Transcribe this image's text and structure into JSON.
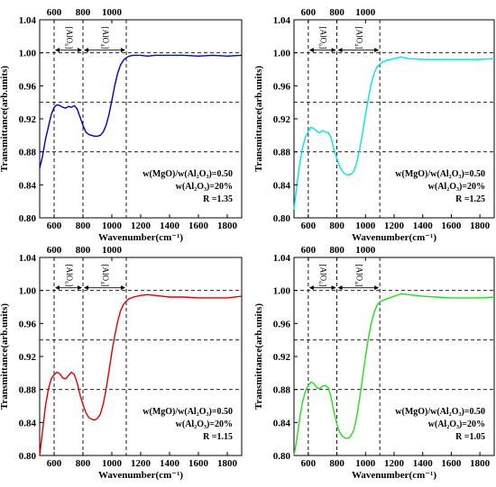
{
  "chart_data": [
    {
      "type": "line",
      "xlabel": "Wavenumber(cm⁻¹)",
      "ylabel": "Transmittance(arb.units)",
      "xlim": [
        500,
        1900
      ],
      "ylim": [
        0.8,
        1.04
      ],
      "bottom_ticks": [
        "600",
        "800",
        "1000",
        "1200",
        "1400",
        "1600",
        "1800"
      ],
      "top_ticks": [
        "600",
        "800",
        "1000"
      ],
      "y_ticks": [
        "0.80",
        "0.84",
        "0.88",
        "0.92",
        "0.96",
        "1.00",
        "1.04"
      ],
      "color": "#0000cc",
      "hlines": [
        1.0,
        0.94,
        0.88
      ],
      "vlines": [
        600,
        800,
        1100
      ],
      "regions": [
        {
          "label": "[AlO₆]",
          "from": 600,
          "to": 800
        },
        {
          "label": "[AlO₄]",
          "from": 800,
          "to": 1100
        }
      ],
      "annotations": [
        "w(MgO)/w(Al₂O₃)=0.50",
        "w(Al₂O₃)=20%",
        "R =1.35"
      ],
      "x": [
        500,
        520,
        540,
        560,
        580,
        600,
        620,
        640,
        660,
        680,
        700,
        720,
        740,
        760,
        780,
        800,
        820,
        840,
        860,
        880,
        900,
        920,
        940,
        960,
        980,
        1000,
        1020,
        1040,
        1060,
        1080,
        1100,
        1120,
        1150,
        1200,
        1250,
        1300,
        1400,
        1500,
        1600,
        1700,
        1800,
        1900
      ],
      "y": [
        0.86,
        0.875,
        0.895,
        0.91,
        0.925,
        0.934,
        0.937,
        0.936,
        0.934,
        0.933,
        0.935,
        0.934,
        0.936,
        0.932,
        0.922,
        0.912,
        0.904,
        0.901,
        0.9,
        0.899,
        0.899,
        0.9,
        0.904,
        0.912,
        0.925,
        0.942,
        0.96,
        0.975,
        0.985,
        0.991,
        0.994,
        0.996,
        0.997,
        0.997,
        0.996,
        0.997,
        0.997,
        0.997,
        0.996,
        0.997,
        0.996,
        0.997
      ]
    },
    {
      "type": "line",
      "xlabel": "Wavenumber(cm⁻¹)",
      "ylabel": "Transmittance(arb.units)",
      "xlim": [
        500,
        1900
      ],
      "ylim": [
        0.8,
        1.04
      ],
      "bottom_ticks": [
        "600",
        "800",
        "1000",
        "1200",
        "1400",
        "1600",
        "1800"
      ],
      "top_ticks": [
        "600",
        "800",
        "1000"
      ],
      "y_ticks": [
        "0.80",
        "0.84",
        "0.88",
        "0.92",
        "0.96",
        "1.00",
        "1.04"
      ],
      "color": "#00e5e5",
      "hlines": [
        1.0,
        0.94,
        0.88
      ],
      "vlines": [
        600,
        800,
        1100
      ],
      "regions": [
        {
          "label": "[AlO₆]",
          "from": 600,
          "to": 800
        },
        {
          "label": "[AlO₄]",
          "from": 800,
          "to": 1100
        }
      ],
      "annotations": [
        "w(MgO)/w(Al₂O₃)=0.50",
        "w(Al₂O₃)=20%",
        "R =1.25"
      ],
      "x": [
        500,
        520,
        540,
        560,
        580,
        600,
        620,
        640,
        660,
        680,
        700,
        720,
        740,
        760,
        780,
        800,
        820,
        840,
        860,
        880,
        900,
        920,
        940,
        960,
        980,
        1000,
        1020,
        1040,
        1060,
        1080,
        1100,
        1120,
        1150,
        1200,
        1250,
        1300,
        1400,
        1500,
        1600,
        1700,
        1800,
        1900
      ],
      "y": [
        0.81,
        0.84,
        0.865,
        0.885,
        0.898,
        0.905,
        0.91,
        0.908,
        0.905,
        0.903,
        0.906,
        0.904,
        0.903,
        0.897,
        0.882,
        0.872,
        0.862,
        0.856,
        0.853,
        0.852,
        0.853,
        0.857,
        0.868,
        0.884,
        0.903,
        0.925,
        0.945,
        0.962,
        0.975,
        0.983,
        0.986,
        0.989,
        0.991,
        0.993,
        0.995,
        0.993,
        0.992,
        0.992,
        0.992,
        0.992,
        0.992,
        0.993
      ]
    },
    {
      "type": "line",
      "xlabel": "Wavenumber(cm⁻¹)",
      "ylabel": "Transmittance(arb.units)",
      "xlim": [
        500,
        1900
      ],
      "ylim": [
        0.8,
        1.04
      ],
      "bottom_ticks": [
        "600",
        "800",
        "1000",
        "1200",
        "1400",
        "1600",
        "1800"
      ],
      "top_ticks": [
        "600",
        "800",
        "1000"
      ],
      "y_ticks": [
        "0.80",
        "0.84",
        "0.88",
        "0.92",
        "0.96",
        "1.00",
        "1.04"
      ],
      "color": "#e00000",
      "hlines": [
        1.0,
        0.94,
        0.88
      ],
      "vlines": [
        600,
        800,
        1100
      ],
      "regions": [
        {
          "label": "[AlO₆]",
          "from": 600,
          "to": 800
        },
        {
          "label": "[AlO₄]",
          "from": 800,
          "to": 1100
        }
      ],
      "annotations": [
        "w(MgO)/w(Al₂O₃)=0.50",
        "w(Al₂O₃)=20%",
        "R =1.15"
      ],
      "x": [
        500,
        520,
        540,
        560,
        580,
        600,
        620,
        640,
        660,
        680,
        700,
        720,
        740,
        760,
        780,
        800,
        820,
        840,
        860,
        880,
        900,
        920,
        940,
        960,
        980,
        1000,
        1020,
        1040,
        1060,
        1080,
        1100,
        1120,
        1150,
        1200,
        1250,
        1300,
        1400,
        1500,
        1600,
        1700,
        1800,
        1900
      ],
      "y": [
        0.8,
        0.83,
        0.86,
        0.88,
        0.893,
        0.898,
        0.901,
        0.899,
        0.894,
        0.893,
        0.897,
        0.901,
        0.898,
        0.888,
        0.873,
        0.862,
        0.852,
        0.846,
        0.844,
        0.843,
        0.845,
        0.85,
        0.862,
        0.88,
        0.902,
        0.925,
        0.945,
        0.962,
        0.975,
        0.983,
        0.987,
        0.99,
        0.992,
        0.994,
        0.995,
        0.994,
        0.992,
        0.992,
        0.991,
        0.991,
        0.991,
        0.993
      ]
    },
    {
      "type": "line",
      "xlabel": "Wavenumber(cm⁻¹)",
      "ylabel": "Transmittance(arb.units)",
      "xlim": [
        500,
        1900
      ],
      "ylim": [
        0.8,
        1.04
      ],
      "bottom_ticks": [
        "600",
        "800",
        "1000",
        "1200",
        "1400",
        "1600",
        "1800"
      ],
      "top_ticks": [
        "600",
        "800",
        "1000"
      ],
      "y_ticks": [
        "0.80",
        "0.84",
        "0.88",
        "0.92",
        "0.96",
        "1.00",
        "1.04"
      ],
      "color": "#22dd22",
      "hlines": [
        1.0,
        0.94,
        0.88
      ],
      "vlines": [
        600,
        800,
        1100
      ],
      "regions": [
        {
          "label": "[AlO₆]",
          "from": 600,
          "to": 800
        },
        {
          "label": "[AlO₄]",
          "from": 800,
          "to": 1100
        }
      ],
      "annotations": [
        "w(MgO)/w(Al₂O₃)=0.50",
        "w(Al₂O₃)=20%",
        "R =1.05"
      ],
      "x": [
        500,
        520,
        540,
        560,
        580,
        600,
        620,
        640,
        660,
        680,
        700,
        720,
        740,
        760,
        780,
        800,
        820,
        840,
        860,
        880,
        900,
        920,
        940,
        960,
        980,
        1000,
        1020,
        1040,
        1060,
        1080,
        1100,
        1120,
        1150,
        1200,
        1250,
        1300,
        1400,
        1500,
        1600,
        1700,
        1800,
        1900
      ],
      "y": [
        0.8,
        0.82,
        0.845,
        0.865,
        0.878,
        0.885,
        0.889,
        0.887,
        0.882,
        0.881,
        0.884,
        0.885,
        0.882,
        0.87,
        0.852,
        0.838,
        0.828,
        0.823,
        0.821,
        0.821,
        0.824,
        0.832,
        0.848,
        0.87,
        0.895,
        0.92,
        0.942,
        0.96,
        0.973,
        0.982,
        0.986,
        0.988,
        0.99,
        0.993,
        0.996,
        0.995,
        0.993,
        0.992,
        0.991,
        0.991,
        0.991,
        0.992
      ]
    }
  ]
}
